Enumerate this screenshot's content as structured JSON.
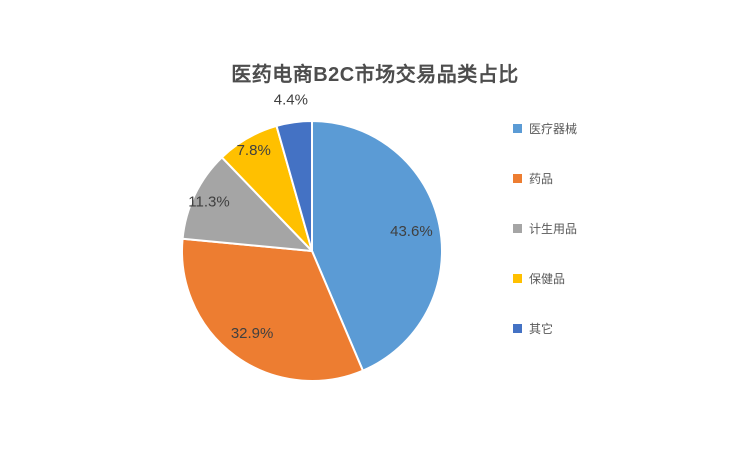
{
  "window": {
    "background": "#FFFFFF"
  },
  "chart_data": {
    "type": "pie",
    "title": "医药电商B2C市场交易品类占比",
    "categories": [
      "医疗器械",
      "药品",
      "计生用品",
      "保健品",
      "其它"
    ],
    "values": [
      43.6,
      32.9,
      11.3,
      7.8,
      4.4
    ],
    "data_labels": [
      "43.6%",
      "32.9%",
      "11.3%",
      "7.8%",
      "4.4%"
    ],
    "colors": [
      "#5B9BD5",
      "#ED7D31",
      "#A5A5A5",
      "#FFC000",
      "#4472C4"
    ],
    "slice_border_color": "#FFFFFF",
    "label_color": "#404040",
    "title_color": "#4D4D4D",
    "legend": {
      "position": "right",
      "text_color": "#595959"
    },
    "start_angle_deg": 0,
    "direction": "clockwise",
    "background": "#FFFFFF"
  }
}
